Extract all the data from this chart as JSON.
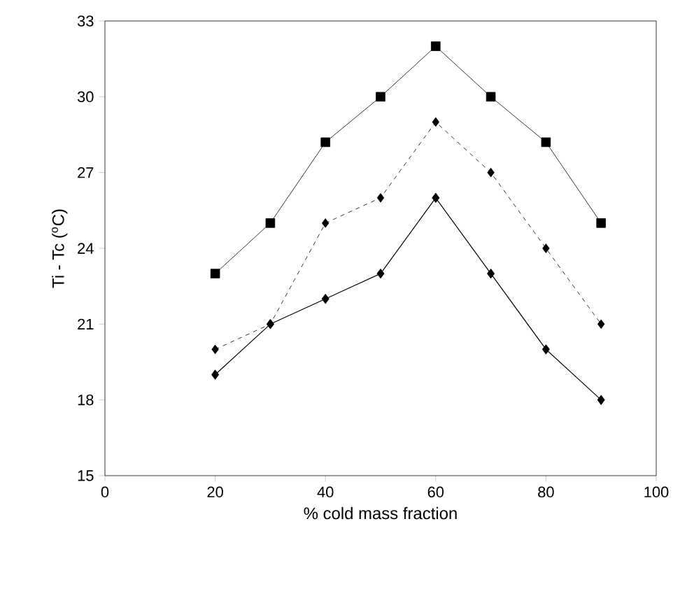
{
  "chart_data": {
    "type": "line",
    "xlabel": "% cold mass fraction",
    "ylabel": "Ti - Tc ($^{o}$C)",
    "x": [
      20,
      30,
      40,
      50,
      60,
      70,
      80,
      90
    ],
    "series": [
      {
        "color": "#000000",
        "marker": "square",
        "line_style": "solid",
        "values": [
          23,
          25,
          28.2,
          30,
          32,
          30,
          28.2,
          25
        ]
      },
      {
        "color": "#000000",
        "marker": "diamond",
        "line_style": "dashed",
        "values": [
          20,
          21,
          25,
          26,
          29,
          27,
          24,
          21
        ]
      },
      {
        "color": "#000000",
        "marker": "diamond",
        "line_style": "solid",
        "values": [
          19,
          21,
          22,
          23,
          26,
          23,
          20,
          18
        ]
      }
    ],
    "xlim": [
      0,
      100
    ],
    "xticks": [
      0,
      20,
      40,
      60,
      80,
      100
    ],
    "ylim": [
      15,
      33
    ],
    "yticks": [
      15,
      18,
      21,
      24,
      27,
      30,
      33
    ],
    "grid": false
  }
}
